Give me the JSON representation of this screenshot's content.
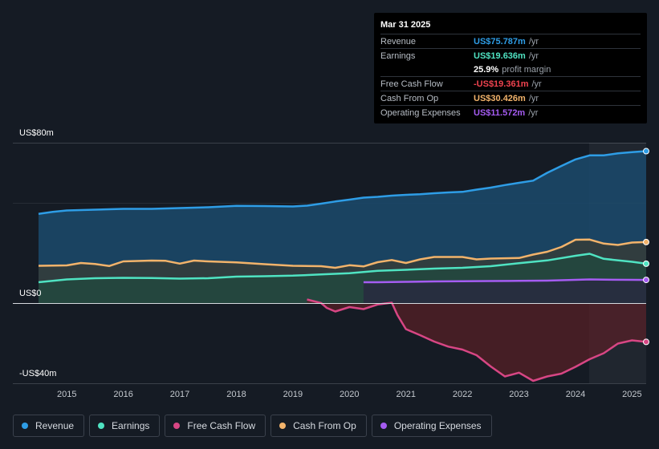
{
  "tooltip": {
    "date": "Mar 31 2025",
    "rows": [
      {
        "label": "Revenue",
        "value": "US$75.787m",
        "unit": "/yr",
        "color": "#2e9de6"
      },
      {
        "label": "Earnings",
        "value": "US$19.636m",
        "unit": "/yr",
        "color": "#4fe3c2"
      },
      {
        "label": "",
        "value": "25.9%",
        "unit": "profit margin",
        "color": "#ffffff"
      },
      {
        "label": "Free Cash Flow",
        "value": "-US$19.361m",
        "unit": "/yr",
        "color": "#f0434f"
      },
      {
        "label": "Cash From Op",
        "value": "US$30.426m",
        "unit": "/yr",
        "color": "#f2b36b"
      },
      {
        "label": "Operating Expenses",
        "value": "US$11.572m",
        "unit": "/yr",
        "color": "#a55cf2"
      }
    ]
  },
  "axis": {
    "y_top": "US$80m",
    "y_zero": "US$0",
    "y_bottom": "-US$40m"
  },
  "legend": [
    {
      "label": "Revenue",
      "color": "#2e9de6"
    },
    {
      "label": "Earnings",
      "color": "#4fe3c2"
    },
    {
      "label": "Free Cash Flow",
      "color": "#d74684"
    },
    {
      "label": "Cash From Op",
      "color": "#f2b36b"
    },
    {
      "label": "Operating Expenses",
      "color": "#a55cf2"
    }
  ],
  "chart_data": {
    "type": "area",
    "title": "",
    "xlabel": "",
    "ylabel": "",
    "ylim": [
      -40,
      80
    ],
    "xlim": [
      2014.5,
      2025.25
    ],
    "x_ticks": [
      2015,
      2016,
      2017,
      2018,
      2019,
      2020,
      2021,
      2022,
      2023,
      2024,
      2025
    ],
    "x_tick_labels": [
      "2015",
      "2016",
      "2017",
      "2018",
      "2019",
      "2020",
      "2021",
      "2022",
      "2023",
      "2024",
      "2025"
    ],
    "series": [
      {
        "name": "Revenue",
        "color": "#2e9de6",
        "fill": "#1b4a6c",
        "x": [
          2014.5,
          2014.75,
          2015.0,
          2015.5,
          2016.0,
          2016.5,
          2017.0,
          2017.5,
          2018.0,
          2018.5,
          2019.0,
          2019.25,
          2019.5,
          2019.75,
          2020.0,
          2020.25,
          2020.5,
          2020.75,
          2021.0,
          2021.25,
          2021.5,
          2021.75,
          2022.0,
          2022.25,
          2022.5,
          2022.75,
          2023.0,
          2023.25,
          2023.5,
          2023.75,
          2024.0,
          2024.25,
          2024.5,
          2024.75,
          2025.0,
          2025.25
        ],
        "values": [
          44.5,
          45.5,
          46.2,
          46.6,
          47.0,
          47.0,
          47.4,
          47.8,
          48.5,
          48.4,
          48.2,
          48.6,
          49.6,
          50.7,
          51.6,
          52.6,
          53.0,
          53.6,
          54.0,
          54.3,
          54.8,
          55.2,
          55.5,
          56.6,
          57.6,
          58.9,
          60.0,
          61.1,
          65.0,
          68.4,
          71.7,
          73.7,
          73.7,
          74.7,
          75.3,
          75.787
        ]
      },
      {
        "name": "Earnings",
        "color": "#4fe3c2",
        "fill": "#1f4a3f",
        "x": [
          2014.5,
          2015.0,
          2015.5,
          2016.0,
          2016.5,
          2017.0,
          2017.5,
          2018.0,
          2018.5,
          2019.0,
          2019.5,
          2020.0,
          2020.5,
          2021.0,
          2021.5,
          2022.0,
          2022.5,
          2023.0,
          2023.5,
          2024.0,
          2024.25,
          2024.5,
          2025.0,
          2025.25
        ],
        "values": [
          10.4,
          11.8,
          12.4,
          12.6,
          12.5,
          12.2,
          12.4,
          13.2,
          13.4,
          13.7,
          14.3,
          14.9,
          16.1,
          16.6,
          17.2,
          17.6,
          18.4,
          19.9,
          21.3,
          23.6,
          24.6,
          22.1,
          20.6,
          19.636
        ]
      },
      {
        "name": "Cash From Op",
        "color": "#f2b36b",
        "fill": "#3b3a31",
        "x": [
          2014.5,
          2015.0,
          2015.25,
          2015.5,
          2015.75,
          2016.0,
          2016.5,
          2016.75,
          2017.0,
          2017.25,
          2017.5,
          2018.0,
          2018.5,
          2019.0,
          2019.5,
          2019.75,
          2020.0,
          2020.25,
          2020.5,
          2020.75,
          2021.0,
          2021.25,
          2021.5,
          2022.0,
          2022.25,
          2022.5,
          2023.0,
          2023.25,
          2023.5,
          2023.75,
          2024.0,
          2024.25,
          2024.5,
          2024.75,
          2025.0,
          2025.25
        ],
        "values": [
          18.6,
          18.8,
          20.0,
          19.5,
          18.5,
          20.8,
          21.2,
          21.1,
          19.7,
          21.2,
          20.8,
          20.3,
          19.4,
          18.6,
          18.4,
          17.6,
          18.9,
          18.3,
          20.4,
          21.5,
          20.0,
          21.8,
          23.0,
          23.0,
          21.8,
          22.2,
          22.5,
          24.2,
          25.6,
          28.0,
          31.6,
          31.7,
          29.7,
          29.0,
          30.2,
          30.426
        ]
      },
      {
        "name": "Operating Expenses",
        "color": "#a55cf2",
        "fill": "#2a2440",
        "x": [
          2020.25,
          2020.5,
          2021.0,
          2021.5,
          2022.0,
          2022.5,
          2023.0,
          2023.5,
          2024.0,
          2024.25,
          2024.5,
          2025.0,
          2025.25
        ],
        "values": [
          10.4,
          10.4,
          10.6,
          10.8,
          10.9,
          11.0,
          11.1,
          11.2,
          11.6,
          11.8,
          11.7,
          11.6,
          11.572
        ]
      },
      {
        "name": "Free Cash Flow",
        "color": "#d74684",
        "fill": "#5a1f27",
        "x": [
          2019.25,
          2019.5,
          2019.6,
          2019.75,
          2020.0,
          2020.25,
          2020.5,
          2020.75,
          2020.85,
          2021.0,
          2021.25,
          2021.5,
          2021.75,
          2022.0,
          2022.25,
          2022.5,
          2022.75,
          2023.0,
          2023.25,
          2023.5,
          2023.75,
          2024.0,
          2024.25,
          2024.5,
          2024.75,
          2025.0,
          2025.25
        ],
        "values": [
          1.8,
          0.0,
          -2.4,
          -4.2,
          -2.0,
          -3.0,
          -0.7,
          0.2,
          -6.0,
          -13.0,
          -16.0,
          -19.2,
          -21.7,
          -23.2,
          -26.0,
          -31.6,
          -36.6,
          -34.7,
          -38.8,
          -36.6,
          -35.2,
          -31.8,
          -28.0,
          -25.0,
          -20.2,
          -18.6,
          -19.361
        ]
      }
    ]
  }
}
